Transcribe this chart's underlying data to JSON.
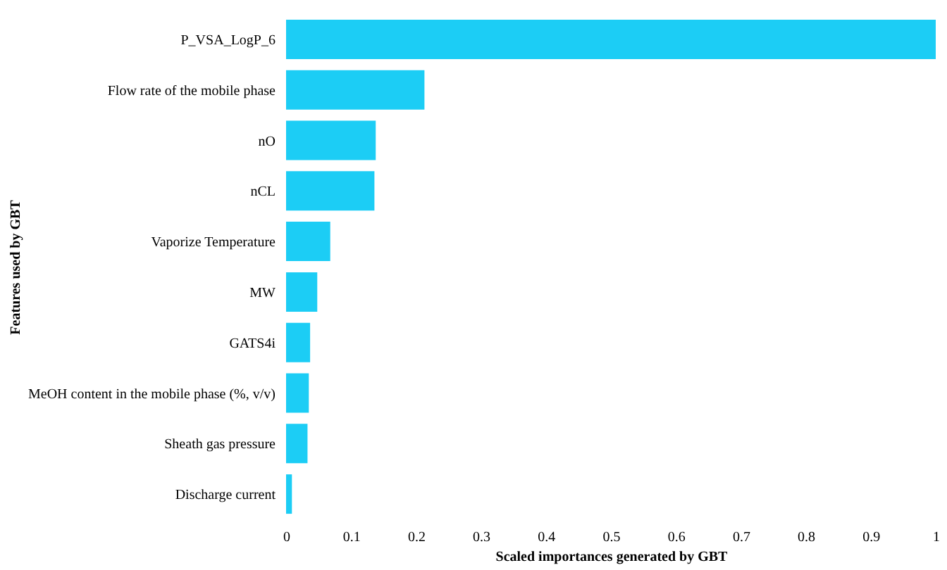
{
  "chart_data": {
    "type": "bar",
    "orientation": "horizontal",
    "xlabel": "Scaled importances generated by GBT",
    "ylabel": "Features used by GBT",
    "categories": [
      "P_VSA_LogP_6",
      "Flow rate of the mobile phase",
      "nO",
      "nCL",
      "Vaporize Temperature",
      "MW",
      "GATS4i",
      "MeOH content in the mobile phase (%, v/v)",
      "Sheath gas pressure",
      "Discharge current"
    ],
    "values": [
      1.0,
      0.213,
      0.138,
      0.136,
      0.068,
      0.048,
      0.037,
      0.035,
      0.033,
      0.009
    ],
    "color": "#1ccdf5",
    "xlim": [
      0,
      1
    ],
    "xticks": [
      0,
      0.1,
      0.2,
      0.3,
      0.4,
      0.5,
      0.6,
      0.7,
      0.8,
      0.9,
      1
    ],
    "grid": false
  }
}
